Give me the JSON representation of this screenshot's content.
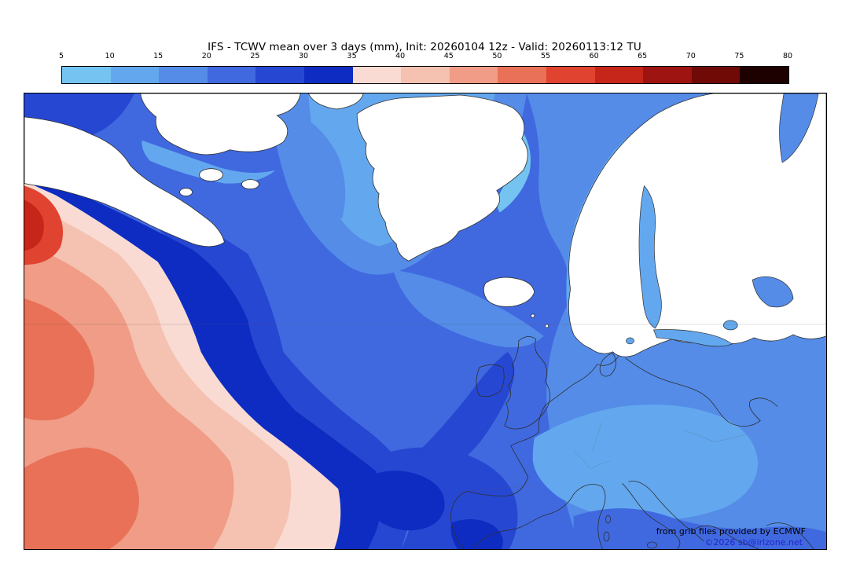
{
  "title": "IFS - TCWV mean over 3 days (mm), Init: 20260104 12z - Valid: 20260113:12 TU",
  "colorbar": {
    "tick_labels": [
      "5",
      "10",
      "15",
      "20",
      "25",
      "30",
      "35",
      "40",
      "45",
      "50",
      "55",
      "60",
      "65",
      "70",
      "75",
      "80"
    ],
    "segment_colors": [
      "#74c3f1",
      "#63a8ee",
      "#548ce8",
      "#4069e0",
      "#2647d2",
      "#0e2cc2",
      "#f9dbd3",
      "#f5c1b0",
      "#f09c86",
      "#e97157",
      "#e04330",
      "#c6251a",
      "#9e1410",
      "#6f0a07",
      "#1d0101"
    ]
  },
  "map": {
    "attribution_line1": "from grib files provided by ECMWF",
    "attribution_line2": "©2026 sb@irizone.net"
  }
}
